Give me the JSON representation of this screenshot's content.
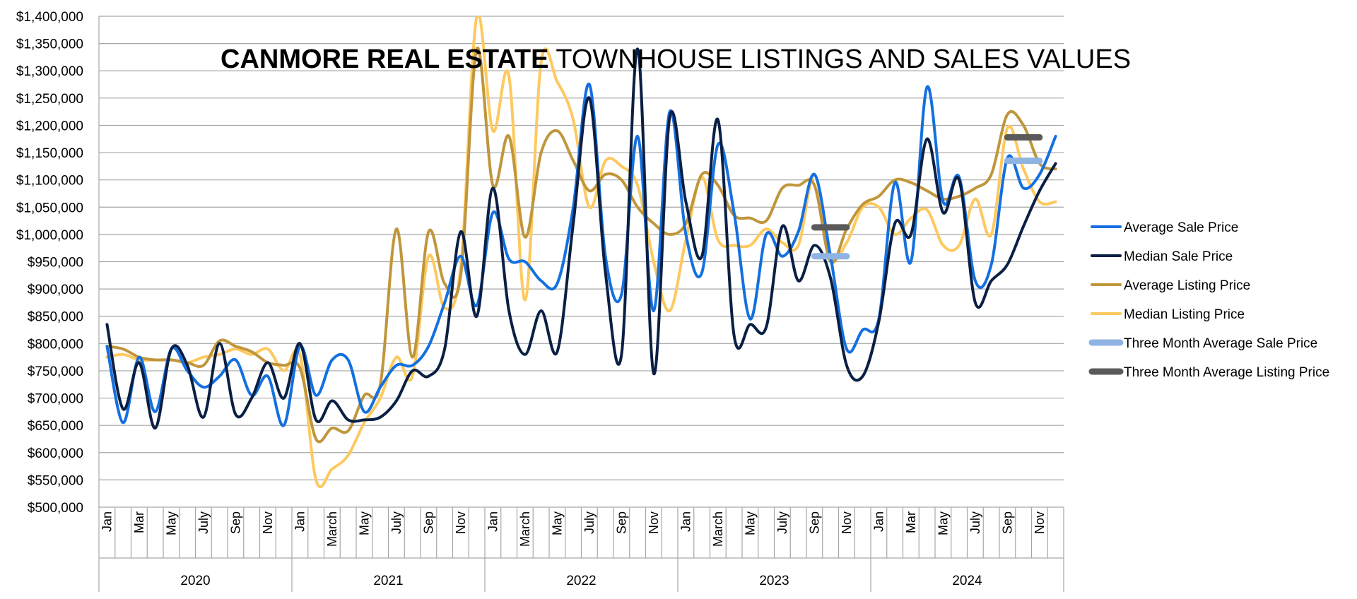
{
  "chart_data": {
    "type": "line",
    "title_bold": "CANMORE REAL ESTATE",
    "title_rest": " TOWNHOUSE LISTINGS AND SALES VALUES",
    "ylim": [
      500000,
      1400000
    ],
    "y_ticks": [
      "$1,400,000",
      "$1,350,000",
      "$1,300,000",
      "$1,250,000",
      "$1,200,000",
      "$1,150,000",
      "$1,100,000",
      "$1,050,000",
      "$1,000,000",
      "$950,000",
      "$900,000",
      "$850,000",
      "$800,000",
      "$750,000",
      "$700,000",
      "$650,000",
      "$600,000",
      "$550,000",
      "$500,000"
    ],
    "years": [
      "2020",
      "2021",
      "2022",
      "2023",
      "2024"
    ],
    "month_labels": [
      [
        "Jan",
        "Mar",
        "May",
        "July",
        "Sep",
        "Nov"
      ],
      [
        "Jan",
        "March",
        "May",
        "July",
        "Sep",
        "Nov"
      ],
      [
        "Jan",
        "March",
        "May",
        "July",
        "Sep",
        "Nov"
      ],
      [
        "Jan",
        "March",
        "May",
        "July",
        "Sep",
        "Nov"
      ],
      [
        "Jan",
        "Mar",
        "May",
        "July",
        "Sep",
        "Nov"
      ]
    ],
    "grid": true,
    "legend_position": "right",
    "series": [
      {
        "name": "Average Sale Price",
        "color": "#1470e0",
        "values": [
          795000,
          655000,
          775000,
          675000,
          790000,
          750000,
          720000,
          740000,
          770000,
          705000,
          740000,
          650000,
          795000,
          705000,
          770000,
          770000,
          675000,
          720000,
          760000,
          760000,
          795000,
          875000,
          960000,
          870000,
          1040000,
          955000,
          950000,
          915000,
          910000,
          1050000,
          1275000,
          960000,
          890000,
          1180000,
          860000,
          1225000,
          1000000,
          930000,
          1165000,
          1040000,
          845000,
          1000000,
          960000,
          1005000,
          1110000,
          960000,
          790000,
          825000,
          845000,
          1095000,
          950000,
          1270000,
          1060000,
          1105000,
          915000,
          945000,
          1140000,
          1085000,
          1110000,
          1180000
        ]
      },
      {
        "name": "Median Sale Price",
        "color": "#0a1f44",
        "values": [
          835000,
          680000,
          765000,
          645000,
          790000,
          760000,
          665000,
          800000,
          670000,
          700000,
          765000,
          700000,
          800000,
          660000,
          695000,
          660000,
          660000,
          665000,
          695000,
          750000,
          740000,
          790000,
          1005000,
          850000,
          1085000,
          860000,
          780000,
          860000,
          785000,
          1020000,
          1250000,
          930000,
          780000,
          1340000,
          745000,
          1215000,
          1060000,
          960000,
          1210000,
          815000,
          835000,
          830000,
          1015000,
          915000,
          980000,
          920000,
          760000,
          740000,
          840000,
          1020000,
          1000000,
          1175000,
          1040000,
          1100000,
          875000,
          915000,
          945000,
          1015000,
          1080000,
          1130000
        ]
      },
      {
        "name": "Average Listing Price",
        "color": "#c0963c",
        "values": [
          795000,
          790000,
          775000,
          770000,
          770000,
          765000,
          760000,
          805000,
          795000,
          785000,
          765000,
          760000,
          755000,
          625000,
          645000,
          640000,
          705000,
          725000,
          1010000,
          775000,
          1005000,
          910000,
          925000,
          1340000,
          1090000,
          1180000,
          995000,
          1150000,
          1190000,
          1135000,
          1080000,
          1110000,
          1100000,
          1050000,
          1020000,
          1000000,
          1020000,
          1110000,
          1090000,
          1035000,
          1030000,
          1025000,
          1085000,
          1090000,
          1090000,
          950000,
          1010000,
          1055000,
          1070000,
          1100000,
          1095000,
          1080000,
          1065000,
          1070000,
          1085000,
          1110000,
          1220000,
          1200000,
          1130000,
          1120000
        ]
      },
      {
        "name": "Median Listing Price",
        "color": "#fdc960",
        "values": [
          775000,
          780000,
          770000,
          770000,
          770000,
          765000,
          775000,
          780000,
          790000,
          780000,
          790000,
          750000,
          780000,
          550000,
          570000,
          595000,
          655000,
          700000,
          775000,
          740000,
          960000,
          865000,
          940000,
          1400000,
          1190000,
          1290000,
          880000,
          1315000,
          1280000,
          1210000,
          1050000,
          1135000,
          1125000,
          1090000,
          950000,
          860000,
          990000,
          1105000,
          990000,
          980000,
          980000,
          1010000,
          985000,
          980000,
          1110000,
          960000,
          985000,
          1050000,
          1050000,
          1000000,
          1030000,
          1045000,
          980000,
          980000,
          1065000,
          1000000,
          1195000,
          1120000,
          1060000,
          1060000
        ]
      }
    ],
    "ref_series": [
      {
        "name": "Three Month Average Sale Price",
        "color": "#8fb4e3",
        "segments": [
          {
            "from_index": 44,
            "to_index": 46,
            "value": 960000
          },
          {
            "from_index": 56,
            "to_index": 58,
            "value": 1135000
          }
        ]
      },
      {
        "name": "Three Month Average Listing Price",
        "color": "#5a5a5a",
        "segments": [
          {
            "from_index": 44,
            "to_index": 46,
            "value": 1013000
          },
          {
            "from_index": 56,
            "to_index": 58,
            "value": 1178000
          }
        ]
      }
    ]
  }
}
